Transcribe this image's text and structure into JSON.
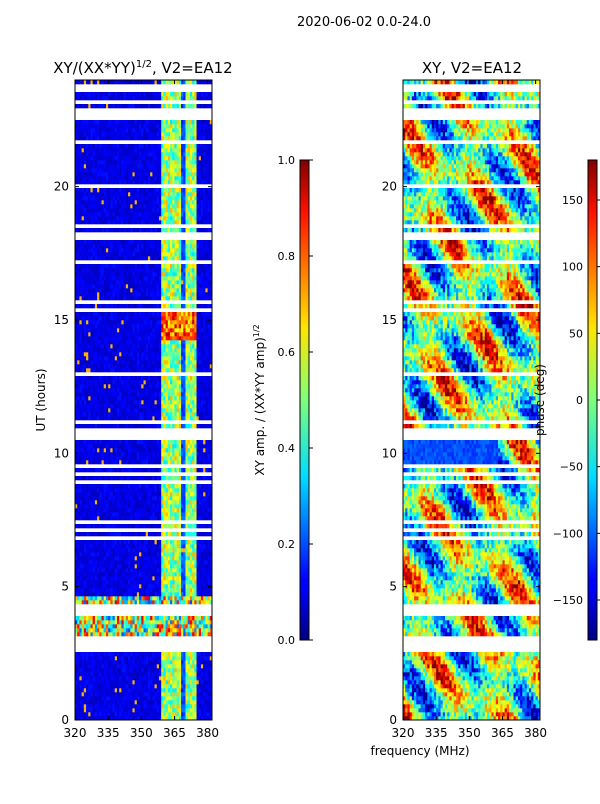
{
  "suptitle": "2020-06-02 0.0-24.0",
  "colors": {
    "background": "#ffffff",
    "gap": "#ffffff",
    "frame": "#000000"
  },
  "shared_axes": {
    "ylabel": "UT (hours)",
    "xlabel": "frequency (MHz)",
    "xlim": [
      320,
      382
    ],
    "ylim": [
      0,
      24
    ],
    "xticks": [
      320,
      335,
      350,
      365,
      380
    ],
    "yticks": [
      0,
      5,
      10,
      15,
      20
    ]
  },
  "chart_data": [
    {
      "type": "heatmap",
      "title_main": "XY/(XX*YY)",
      "title_sup": "1/2",
      "title_rest": ", V2=EA12",
      "xlabel": "frequency (MHz)",
      "ylabel": "UT (hours)",
      "xlim": [
        320,
        382
      ],
      "ylim": [
        0,
        24
      ],
      "colormap": "jet",
      "colorbar": {
        "label_main": "XY amp. / (XX*YY amp)",
        "label_sup": "1/2",
        "range": [
          0.0,
          1.0
        ],
        "ticks": [
          "0.0",
          "0.2",
          "0.4",
          "0.6",
          "0.8",
          "1.0"
        ]
      },
      "features": [
        {
          "description": "bright band",
          "freq_range": [
            359,
            375
          ],
          "value": 0.5
        },
        {
          "description": "enhanced block",
          "time_range": [
            14.2,
            15.4
          ],
          "freq_range": [
            359,
            375
          ],
          "value": 0.85
        },
        {
          "description": "enhanced block",
          "time_range": [
            2.5,
            4.6
          ],
          "freq_range": [
            320,
            382
          ],
          "value": 0.55
        },
        {
          "description": "background",
          "value": 0.08
        }
      ]
    },
    {
      "type": "heatmap",
      "title_main": "XY, V2=EA12",
      "xlabel": "frequency (MHz)",
      "ylabel": "",
      "xlim": [
        320,
        382
      ],
      "ylim": [
        0,
        24
      ],
      "colormap": "jet",
      "colorbar": {
        "label_main": "phase (deg)",
        "range": [
          -180,
          180
        ],
        "ticks": [
          "−150",
          "−100",
          "−50",
          "0",
          "50",
          "100",
          "150"
        ]
      },
      "features": [
        {
          "description": "blue phase patch",
          "time_range": [
            9.6,
            10.6
          ],
          "freq_range": [
            320,
            363
          ],
          "value": -120
        },
        {
          "description": "mixed phase",
          "value": 0
        }
      ]
    }
  ]
}
